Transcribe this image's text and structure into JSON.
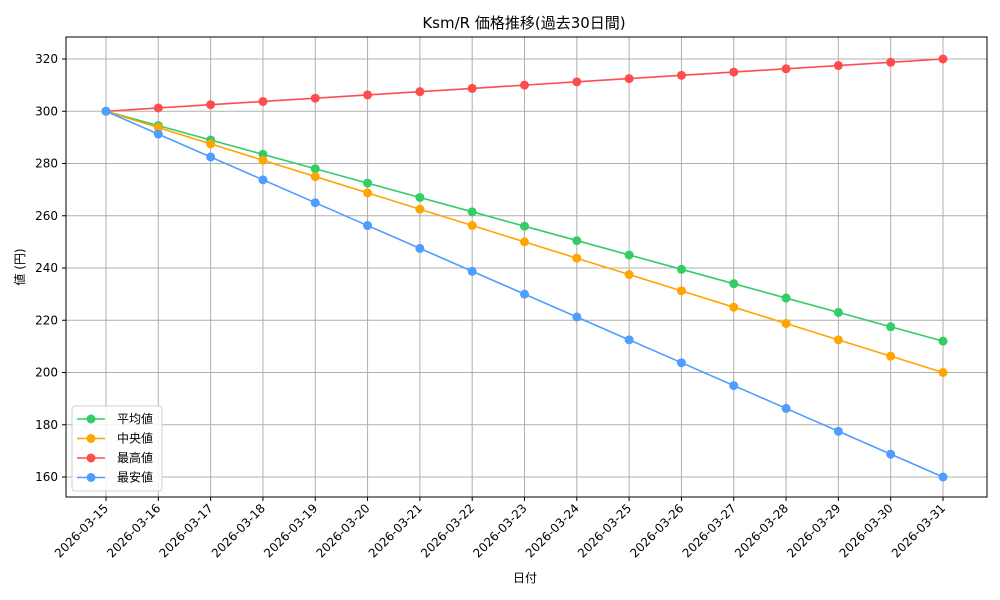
{
  "chart_data": {
    "type": "line",
    "title": "Ksm/R 価格推移(過去30日間)",
    "xlabel": "日付",
    "ylabel": "値 (円)",
    "ylim": [
      152,
      328
    ],
    "yticks": [
      160,
      180,
      200,
      220,
      240,
      260,
      280,
      300,
      320
    ],
    "grid": true,
    "legend_position": "lower left",
    "x": [
      "2026-03-15",
      "2026-03-16",
      "2026-03-17",
      "2026-03-18",
      "2026-03-19",
      "2026-03-20",
      "2026-03-21",
      "2026-03-22",
      "2026-03-23",
      "2026-03-24",
      "2026-03-25",
      "2026-03-26",
      "2026-03-27",
      "2026-03-28",
      "2026-03-29",
      "2026-03-30",
      "2026-03-31"
    ],
    "series": [
      {
        "name": "平均値",
        "color": "#33cc66",
        "values": [
          300,
          294.5,
          289,
          283.5,
          278,
          272.5,
          267,
          261.5,
          256,
          250.5,
          245,
          239.5,
          234,
          228.5,
          223,
          217.5,
          212
        ]
      },
      {
        "name": "中央値",
        "color": "#ffa500",
        "values": [
          300,
          293.75,
          287.5,
          281.25,
          275,
          268.75,
          262.5,
          256.25,
          250,
          243.75,
          237.5,
          231.25,
          225,
          218.75,
          212.5,
          206.25,
          200
        ]
      },
      {
        "name": "最高値",
        "color": "#ff4d4d",
        "values": [
          300,
          301.25,
          302.5,
          303.75,
          305,
          306.25,
          307.5,
          308.75,
          310,
          311.25,
          312.5,
          313.75,
          315,
          316.25,
          317.5,
          318.75,
          320
        ]
      },
      {
        "name": "最安値",
        "color": "#4d9eff",
        "values": [
          300,
          291.25,
          282.5,
          273.75,
          265,
          256.25,
          247.5,
          238.75,
          230,
          221.25,
          212.5,
          203.75,
          195,
          186.25,
          177.5,
          168.75,
          160
        ]
      }
    ]
  }
}
